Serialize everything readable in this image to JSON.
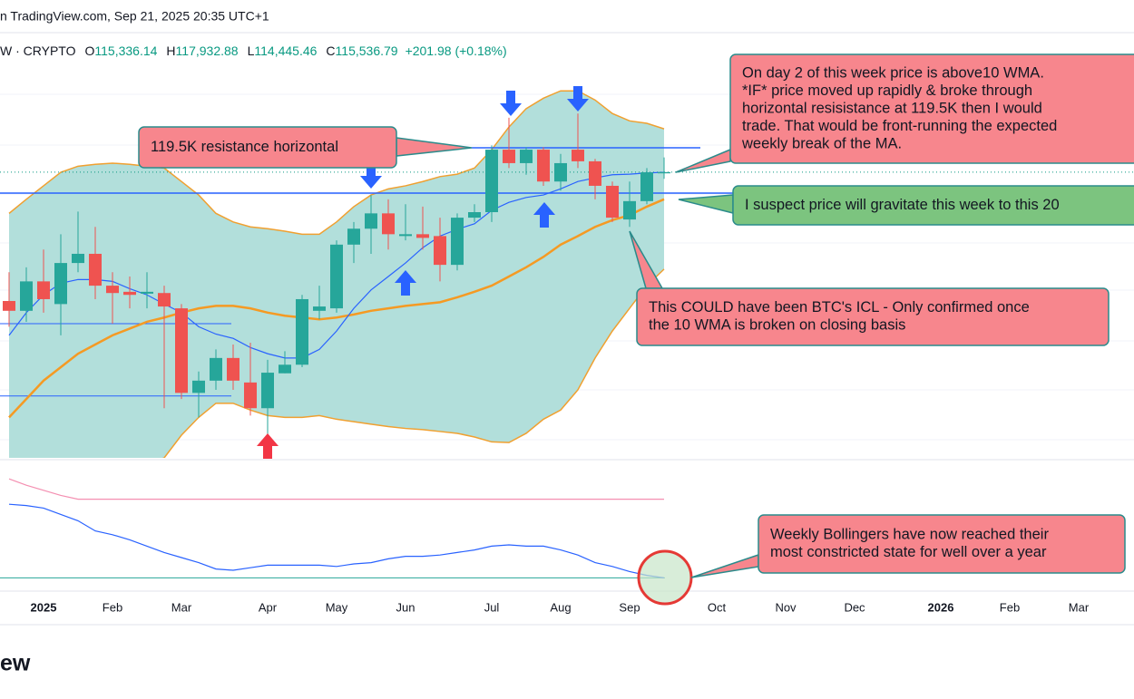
{
  "header": {
    "source": "n TradingView.com, Sep 21, 2025 20:35 UTC+1",
    "symbol": "W · CRYPTO",
    "ohlc": [
      {
        "label": "O",
        "value": "115,336.14"
      },
      {
        "label": "H",
        "value": "117,932.88"
      },
      {
        "label": "L",
        "value": "114,445.46"
      },
      {
        "label": "C",
        "value": "115,536.79"
      }
    ],
    "change": "+201.98 (+0.18%)"
  },
  "chart_data": {
    "type": "candlestick",
    "open": [
      94500,
      92900,
      97700,
      94000,
      100700,
      102200,
      97000,
      96000,
      95700,
      95800,
      93300,
      79500,
      81500,
      85200,
      81200,
      77000,
      82700,
      84100,
      92900,
      93300,
      103700,
      106300,
      108800,
      105100,
      105400,
      105100,
      100400,
      108100,
      109000,
      119200,
      117000,
      119200,
      114000,
      119200,
      117300,
      113300,
      107800,
      110800,
      115336.14
    ],
    "high": [
      99200,
      100000,
      102900,
      105400,
      109100,
      106600,
      99200,
      98500,
      99200,
      97000,
      94000,
      83000,
      86600,
      87400,
      87700,
      84900,
      86300,
      95500,
      97000,
      104400,
      107400,
      111800,
      111100,
      110300,
      109900,
      108100,
      108800,
      110300,
      119900,
      124400,
      119600,
      119600,
      118500,
      125100,
      117700,
      114000,
      114000,
      116200,
      117932.88
    ],
    "low": [
      90300,
      91100,
      92600,
      88900,
      99200,
      94800,
      90800,
      93300,
      93300,
      77000,
      78500,
      75500,
      80000,
      80000,
      75800,
      72600,
      82700,
      83700,
      91500,
      92600,
      100700,
      102200,
      102900,
      104400,
      102900,
      97700,
      99500,
      107400,
      107400,
      116200,
      115100,
      113300,
      112500,
      116200,
      111100,
      107400,
      106600,
      110300,
      114445.46
    ],
    "close": [
      92900,
      97700,
      94800,
      100700,
      102200,
      97000,
      95800,
      95500,
      96000,
      93600,
      79500,
      81500,
      85200,
      81500,
      77000,
      82800,
      84100,
      94800,
      93600,
      103700,
      106300,
      108800,
      105400,
      105400,
      104800,
      100400,
      108100,
      109000,
      119200,
      117000,
      119200,
      114000,
      117000,
      117300,
      113300,
      108100,
      110800,
      115500,
      115536.79
    ],
    "up_color": "#26a69a",
    "down_color": "#ef5350",
    "ylim": [
      68900,
      138300
    ],
    "bands": {
      "upper": [
        108800,
        111100,
        113300,
        115500,
        116500,
        116800,
        117000,
        116800,
        116500,
        116200,
        114000,
        111800,
        108800,
        107400,
        106600,
        106300,
        105900,
        105400,
        105400,
        107400,
        109900,
        111800,
        112800,
        113300,
        114000,
        114800,
        115200,
        116200,
        119200,
        122900,
        125900,
        127600,
        128800,
        128800,
        127300,
        125100,
        123900,
        123500,
        122600
      ],
      "lower": [
        65200,
        65500,
        65800,
        66100,
        66400,
        66700,
        67000,
        67400,
        67800,
        68900,
        72600,
        75500,
        77800,
        77800,
        76700,
        75800,
        75500,
        75500,
        75800,
        75200,
        74800,
        74400,
        74000,
        73700,
        73500,
        73200,
        72900,
        72300,
        71500,
        71400,
        72900,
        75200,
        76700,
        80000,
        85200,
        89600,
        93300,
        97000,
        99700
      ],
      "fill": "#b2dfdb",
      "color": "#f0a030"
    },
    "wma10": {
      "color": "#2962ff",
      "values": [
        88900,
        92600,
        95500,
        97400,
        98000,
        98000,
        97700,
        96500,
        95500,
        94000,
        92600,
        90300,
        89100,
        88400,
        86900,
        85900,
        85200,
        85200,
        86600,
        89600,
        93300,
        96300,
        98500,
        100700,
        103200,
        105100,
        106200,
        107100,
        109300,
        110600,
        111400,
        111800,
        112800,
        114000,
        114600,
        115100,
        115200,
        115400,
        115500
      ]
    },
    "wma20": {
      "color": "#f59a23",
      "values": [
        75500,
        78500,
        81500,
        83700,
        85900,
        87400,
        88900,
        90000,
        91100,
        91800,
        92600,
        93300,
        93700,
        93700,
        93300,
        92600,
        92100,
        91800,
        91500,
        91800,
        92300,
        92900,
        93300,
        93700,
        94000,
        94300,
        95100,
        96000,
        97000,
        98500,
        100000,
        101700,
        103700,
        105100,
        106600,
        107700,
        108500,
        109900,
        111100
      ]
    },
    "levels": [
      {
        "value": 119500,
        "color": "#2962ff"
      },
      {
        "value": 112100,
        "color": "#2962ff"
      },
      {
        "value": 90800,
        "color": "#2962ff"
      },
      {
        "value": 79000,
        "color": "#2962ff"
      }
    ],
    "x_labels": [
      "2025",
      "Feb",
      "Mar",
      "Apr",
      "May",
      "Jun",
      "Jul",
      "Aug",
      "Sep",
      "Oct",
      "Nov",
      "Dec",
      "2026",
      "Feb",
      "Mar"
    ],
    "annotations": [
      {
        "lines": [
          "119.5K resistance horizontal"
        ]
      },
      {
        "lines": [
          "On day 2 of this week price is above10 WMA.",
          "*IF* price moved up rapidly & broke through",
          "horizontal resisistance at 119.5K then I would",
          "trade. That would be front-running the expected",
          "weekly break of the MA."
        ]
      },
      {
        "lines": [
          "I suspect price will gravitate this week to this 20"
        ]
      },
      {
        "lines": [
          "This COULD have been BTC's ICL - Only confirmed once",
          "the 10 WMA is broken on closing basis"
        ]
      },
      {
        "lines": [
          "Weekly Bollingers have now reached their",
          "most constricted state for well over a year"
        ]
      }
    ]
  },
  "indicator": {
    "ylim": [
      0,
      10
    ],
    "values": [
      6.7,
      6.6,
      6.4,
      5.9,
      5.4,
      4.6,
      4.3,
      3.9,
      3.4,
      2.9,
      2.5,
      2.1,
      1.6,
      1.5,
      1.7,
      1.9,
      1.9,
      1.9,
      1.9,
      1.8,
      2.0,
      2.1,
      2.4,
      2.6,
      2.6,
      2.7,
      2.9,
      3.1,
      3.4,
      3.5,
      3.4,
      3.4,
      3.1,
      2.7,
      2.1,
      1.8,
      1.4,
      1.1,
      0.9
    ],
    "values_color": "#2962ff",
    "signal": [
      8.7,
      8.2,
      7.8,
      7.4,
      7.1,
      7.1,
      7.1,
      7.1,
      7.1,
      7.1,
      7.1,
      7.1,
      7.1,
      7.1,
      7.1,
      7.1,
      7.1,
      7.1,
      7.1,
      7.1,
      7.1,
      7.1,
      7.1,
      7.1,
      7.1,
      7.1,
      7.1,
      7.1,
      7.1,
      7.1,
      7.1,
      7.1,
      7.1,
      7.1,
      7.1,
      7.1,
      7.1,
      7.1,
      7.1
    ],
    "signal_color": "#f48fb1",
    "level": 0.9,
    "level_color": "#26a69a"
  },
  "logo": "ew"
}
